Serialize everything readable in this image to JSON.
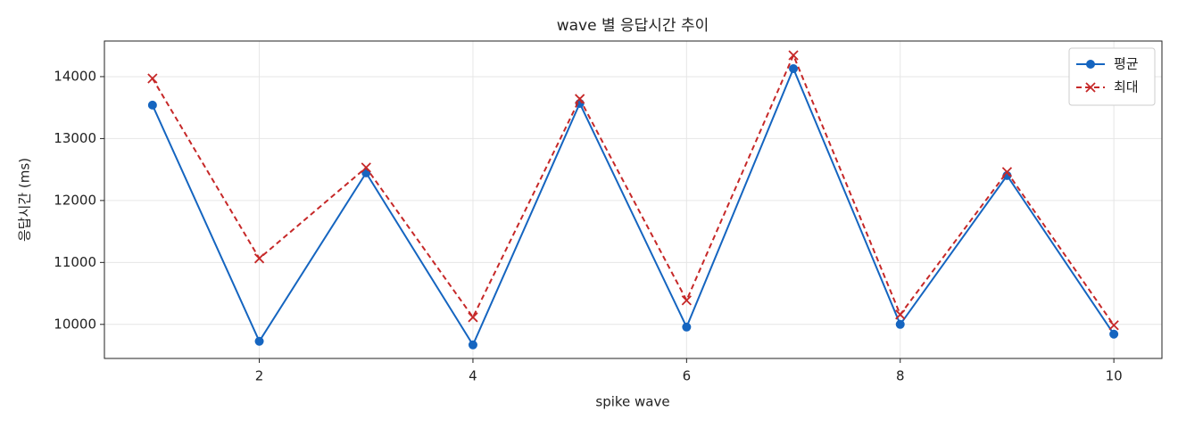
{
  "chart_data": {
    "type": "line",
    "title": "wave 별 응답시간 추이",
    "x_label": "spike wave",
    "y_label": "응답시간 (ms)",
    "x": [
      1,
      2,
      3,
      4,
      5,
      6,
      7,
      8,
      9,
      10
    ],
    "series": [
      {
        "name": "평균",
        "color": "#1565c0",
        "marker": "circle",
        "dash": false,
        "values": [
          13540,
          9727,
          12446,
          9669,
          13568,
          9957,
          14129,
          10000,
          12403,
          9842
        ]
      },
      {
        "name": "최대",
        "color": "#c62828",
        "marker": "x",
        "dash": true,
        "values": [
          13971,
          11065,
          12532,
          10115,
          13640,
          10388,
          14345,
          10158,
          12460,
          9986
        ]
      }
    ],
    "xlim": [
      0.55,
      10.45
    ],
    "xticks": [
      2,
      4,
      6,
      8,
      10
    ],
    "ylim": [
      9450,
      14575
    ],
    "yticks": [
      10000,
      11000,
      12000,
      13000,
      14000
    ],
    "grid": true,
    "legend": "upper right"
  }
}
